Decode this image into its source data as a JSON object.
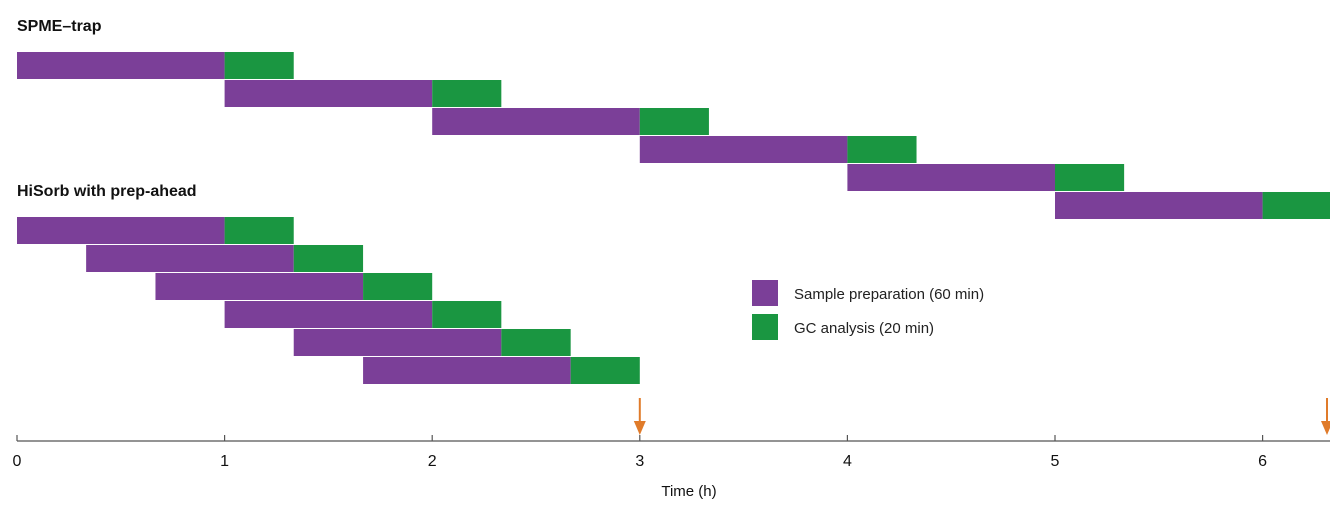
{
  "chart_data": {
    "type": "gantt",
    "unit": "h",
    "xlabel": "Time (h)",
    "xticks": [
      0,
      1,
      2,
      3,
      4,
      5,
      6
    ],
    "xlim": [
      0,
      6.33
    ],
    "legend": [
      {
        "label": "Sample preparation (60 min)",
        "color": "#7B3F98"
      },
      {
        "label": "GC analysis (20 min)",
        "color": "#1A9641"
      }
    ],
    "groups": [
      {
        "title": "SPME–trap",
        "samples": [
          {
            "prep": [
              0,
              1
            ],
            "gc": [
              1,
              1.333
            ]
          },
          {
            "prep": [
              1,
              2
            ],
            "gc": [
              2,
              2.333
            ]
          },
          {
            "prep": [
              2,
              3
            ],
            "gc": [
              3,
              3.333
            ]
          },
          {
            "prep": [
              3,
              4
            ],
            "gc": [
              4,
              4.333
            ]
          },
          {
            "prep": [
              4,
              5
            ],
            "gc": [
              5,
              5.333
            ]
          },
          {
            "prep": [
              5,
              6
            ],
            "gc": [
              6,
              6.333
            ]
          }
        ]
      },
      {
        "title": "HiSorb with prep-ahead",
        "samples": [
          {
            "prep": [
              0,
              1
            ],
            "gc": [
              1,
              1.333
            ]
          },
          {
            "prep": [
              0.333,
              1.333
            ],
            "gc": [
              1.333,
              1.667
            ]
          },
          {
            "prep": [
              0.667,
              1.667
            ],
            "gc": [
              1.667,
              2.0
            ]
          },
          {
            "prep": [
              1.0,
              2.0
            ],
            "gc": [
              2.0,
              2.333
            ]
          },
          {
            "prep": [
              1.333,
              2.333
            ],
            "gc": [
              2.333,
              2.667
            ]
          },
          {
            "prep": [
              1.667,
              2.667
            ],
            "gc": [
              2.667,
              3.0
            ]
          }
        ]
      }
    ],
    "markers": [
      {
        "x": 3.0,
        "color": "#E07B2A"
      },
      {
        "x": 6.333,
        "color": "#E07B2A"
      }
    ]
  }
}
